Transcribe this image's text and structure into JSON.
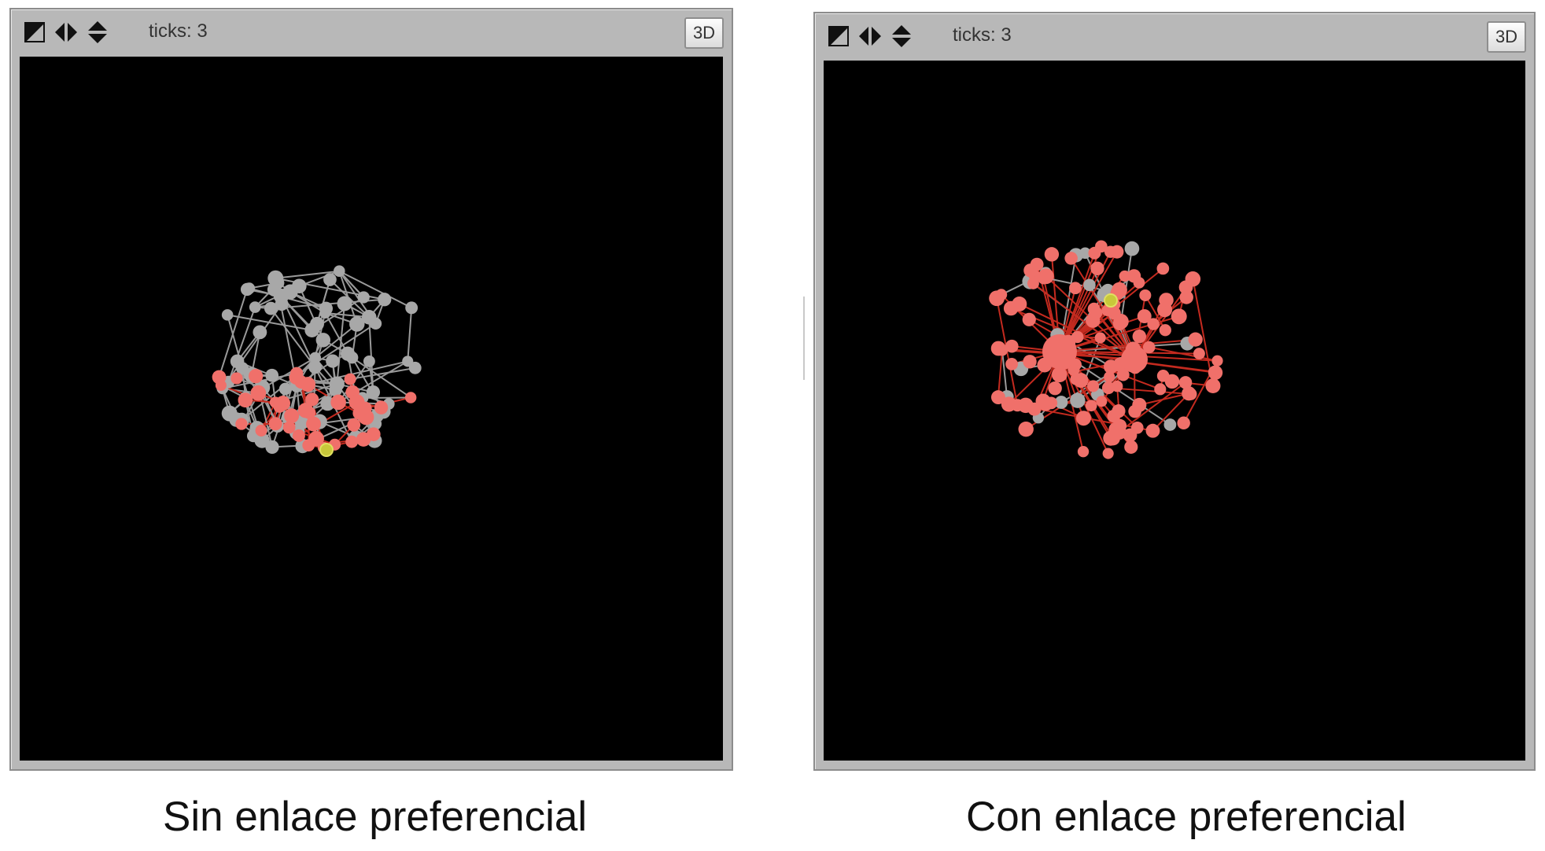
{
  "colors": {
    "gray_node": "#a8a8a8",
    "red_node": "#f0706a",
    "yellow_node": "#c8c83a",
    "gray_link": "#9a9a9a",
    "red_link": "#c42a1f",
    "background": "#000000"
  },
  "left_view": {
    "ticks_label": "ticks: 3",
    "button_3d": "3D",
    "icons": [
      "reset-perspective-icon",
      "move-left-right-icon",
      "move-up-down-icon"
    ],
    "caption": "Sin enlace preferencial",
    "network": {
      "gray_nodes": 70,
      "red_nodes": 40,
      "yellow_nodes": 1,
      "pattern": "uniform"
    }
  },
  "right_view": {
    "ticks_label": "ticks: 3",
    "button_3d": "3D",
    "icons": [
      "reset-perspective-icon",
      "move-left-right-icon",
      "move-up-down-icon"
    ],
    "caption": "Con enlace preferencial",
    "network": {
      "gray_nodes": 20,
      "red_nodes": 110,
      "yellow_nodes": 1,
      "pattern": "preferential"
    }
  }
}
